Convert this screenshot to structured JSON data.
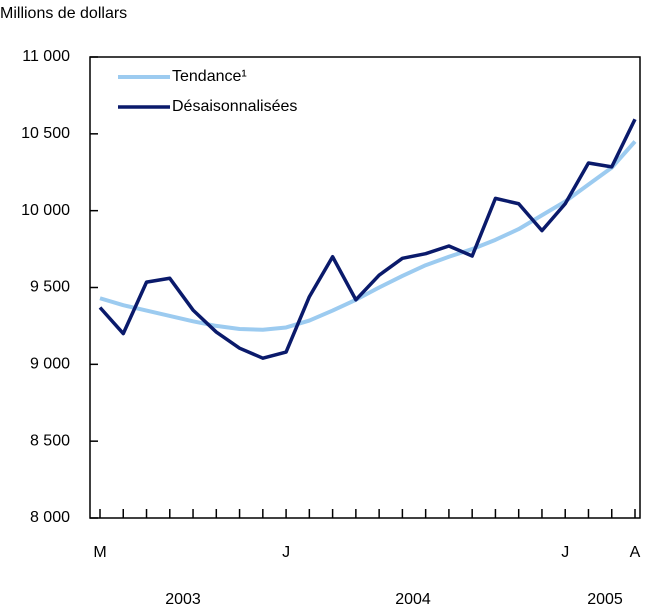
{
  "chart_data": {
    "type": "line",
    "y_label": "Millions de dollars",
    "categories": [
      "M",
      null,
      null,
      null,
      null,
      null,
      null,
      null,
      "J",
      null,
      null,
      null,
      null,
      null,
      null,
      null,
      null,
      null,
      null,
      null,
      "J",
      null,
      null,
      "A"
    ],
    "year_labels": [
      "2003",
      "2004",
      "2005"
    ],
    "series": [
      {
        "name": "Tendance¹",
        "color": "#9ccbf0",
        "values": [
          9430,
          9385,
          9350,
          9315,
          9280,
          9250,
          9230,
          9225,
          9240,
          9285,
          9350,
          9420,
          9500,
          9575,
          9645,
          9700,
          9750,
          9810,
          9880,
          9970,
          10060,
          10170,
          10280,
          10450
        ]
      },
      {
        "name": "Désaisonnalisées",
        "color": "#0a1a6b",
        "values": [
          9370,
          9200,
          9535,
          9560,
          9353,
          9210,
          9105,
          9040,
          9080,
          9440,
          9700,
          9420,
          9580,
          9690,
          9720,
          9770,
          9705,
          10080,
          10045,
          9870,
          10045,
          10310,
          10285,
          10595
        ]
      }
    ],
    "ylim": [
      8000,
      11000
    ],
    "yticks": [
      {
        "value": 8000,
        "label": "8 000"
      },
      {
        "value": 8500,
        "label": "8 500"
      },
      {
        "value": 9000,
        "label": "9 000"
      },
      {
        "value": 9500,
        "label": "9 500"
      },
      {
        "value": 10000,
        "label": "10 000"
      },
      {
        "value": 10500,
        "label": "10 500"
      },
      {
        "value": 11000,
        "label": "11 000"
      }
    ],
    "legend": "upper left",
    "grid": false
  }
}
